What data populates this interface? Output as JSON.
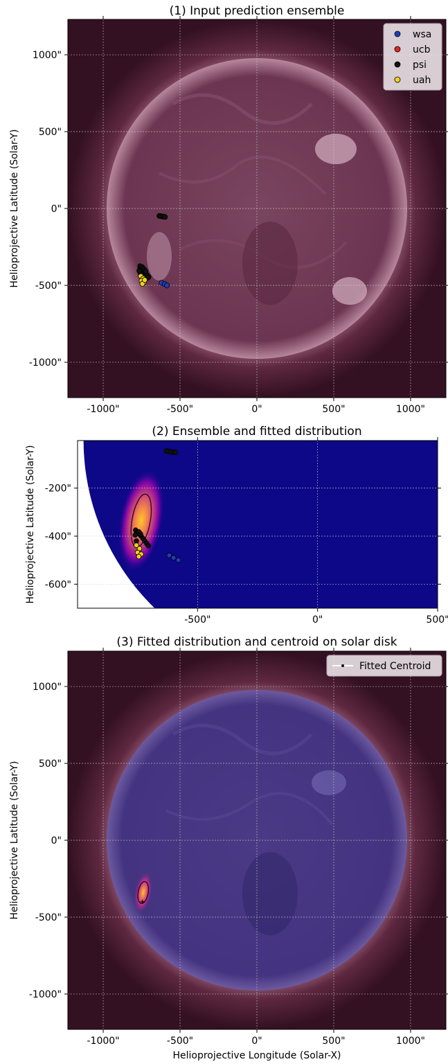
{
  "chart_data": [
    {
      "type": "scatter",
      "title": "(1) Input prediction ensemble",
      "xlabel": "",
      "ylabel": "Helioprojective Latitude (Solar-Y)",
      "xlim": [
        -1230,
        1230
      ],
      "ylim": [
        -1230,
        1230
      ],
      "xticks": [
        {
          "value": -1000,
          "label": "-1000\""
        },
        {
          "value": -500,
          "label": "-500\""
        },
        {
          "value": 0,
          "label": "0\""
        },
        {
          "value": 500,
          "label": "500\""
        },
        {
          "value": 1000,
          "label": "1000\""
        }
      ],
      "yticks": [
        {
          "value": 1000,
          "label": "1000\""
        },
        {
          "value": 500,
          "label": "500\""
        },
        {
          "value": 0,
          "label": "0\""
        },
        {
          "value": -500,
          "label": "-500\""
        },
        {
          "value": -1000,
          "label": "-1000\""
        }
      ],
      "grid": true,
      "background": "sdo-aia-171-disk",
      "legend_position": "top-right",
      "legend": [
        {
          "name": "wsa",
          "color": "#1f3fb8"
        },
        {
          "name": "ucb",
          "color": "#e8231f"
        },
        {
          "name": "psi",
          "color": "#111111"
        },
        {
          "name": "uah",
          "color": "#f2d21b"
        }
      ],
      "series": [
        {
          "name": "psi",
          "color": "#111111",
          "points": [
            [
              -635,
              -48
            ],
            [
              -625,
              -50
            ],
            [
              -615,
              -52
            ],
            [
              -605,
              -53
            ],
            [
              -598,
              -55
            ],
            [
              -760,
              -375
            ],
            [
              -752,
              -385
            ],
            [
              -745,
              -395
            ],
            [
              -738,
              -405
            ],
            [
              -730,
              -415
            ],
            [
              -722,
              -425
            ],
            [
              -714,
              -435
            ],
            [
              -705,
              -445
            ],
            [
              -760,
              -395
            ],
            [
              -758,
              -420
            ],
            [
              -748,
              -380
            ],
            [
              -740,
              -390
            ],
            [
              -732,
              -398
            ],
            [
              -725,
              -408
            ],
            [
              -720,
              -440
            ],
            [
              -710,
              -450
            ],
            [
              -765,
              -405
            ]
          ]
        },
        {
          "name": "wsa",
          "color": "#1f3fb8",
          "points": [
            [
              -620,
              -483
            ],
            [
              -600,
              -492
            ],
            [
              -585,
              -500
            ]
          ]
        },
        {
          "name": "uah",
          "color": "#f2d21b",
          "points": [
            [
              -755,
              -440
            ],
            [
              -740,
              -455
            ],
            [
              -750,
              -470
            ],
            [
              -735,
              -480
            ],
            [
              -745,
              -490
            ],
            [
              -730,
              -465
            ]
          ]
        }
      ]
    },
    {
      "type": "scatter",
      "title": "(2) Ensemble and fitted distribution",
      "xlabel": "",
      "ylabel": "Helioprojective Latitude (Solar-Y)",
      "xlim": [
        -1000,
        500
      ],
      "ylim": [
        -700,
        -2
      ],
      "xticks": [
        {
          "value": -500,
          "label": "-500\""
        },
        {
          "value": 0,
          "label": "0\""
        },
        {
          "value": 500,
          "label": "500\""
        }
      ],
      "yticks": [
        {
          "value": -200,
          "label": "-200\""
        },
        {
          "value": -400,
          "label": "-400\""
        },
        {
          "value": -600,
          "label": "-600\""
        }
      ],
      "grid": true,
      "background": "plasma-heatmap",
      "fitted_distribution": {
        "center_x": -735,
        "center_y": -335,
        "semi_axis_major": 155,
        "semi_axis_minor": 38,
        "rotation_deg": 10
      },
      "series": [
        {
          "name": "psi",
          "color": "#111111",
          "points": [
            [
              -630,
              -45
            ],
            [
              -620,
              -47
            ],
            [
              -610,
              -49
            ],
            [
              -600,
              -50
            ],
            [
              -592,
              -51
            ],
            [
              -758,
              -375
            ],
            [
              -750,
              -383
            ],
            [
              -742,
              -392
            ],
            [
              -735,
              -400
            ],
            [
              -727,
              -410
            ],
            [
              -720,
              -420
            ],
            [
              -712,
              -430
            ],
            [
              -705,
              -440
            ],
            [
              -760,
              -395
            ],
            [
              -755,
              -420
            ],
            [
              -745,
              -382
            ],
            [
              -738,
              -390
            ]
          ]
        },
        {
          "name": "wsa",
          "color": "#1f3fb8",
          "points": [
            [
              -618,
              -480
            ],
            [
              -600,
              -490
            ],
            [
              -580,
              -500
            ]
          ]
        },
        {
          "name": "uah",
          "color": "#f2d21b",
          "points": [
            [
              -755,
              -438
            ],
            [
              -742,
              -452
            ],
            [
              -750,
              -468
            ],
            [
              -735,
              -475
            ],
            [
              -745,
              -485
            ]
          ]
        }
      ]
    },
    {
      "type": "heatmap",
      "title": "(3) Fitted distribution and centroid on solar disk",
      "xlabel": "Helioprojective Longitude (Solar-X)",
      "ylabel": "Helioprojective Latitude (Solar-Y)",
      "xlim": [
        -1230,
        1230
      ],
      "ylim": [
        -1230,
        1230
      ],
      "xticks": [
        {
          "value": -1000,
          "label": "-1000\""
        },
        {
          "value": -500,
          "label": "-500\""
        },
        {
          "value": 0,
          "label": "0\""
        },
        {
          "value": 500,
          "label": "500\""
        },
        {
          "value": 1000,
          "label": "1000\""
        }
      ],
      "yticks": [
        {
          "value": 1000,
          "label": "1000\""
        },
        {
          "value": 500,
          "label": "500\""
        },
        {
          "value": 0,
          "label": "0\""
        },
        {
          "value": -500,
          "label": "-500\""
        },
        {
          "value": -1000,
          "label": "-1000\""
        }
      ],
      "grid": true,
      "background": "sdo-aia-171-disk-with-overlay",
      "legend_position": "top-right",
      "legend": [
        {
          "name": "Fitted Centroid",
          "color": "#ffffff"
        }
      ],
      "fitted_distribution": {
        "center_x": -740,
        "center_y": -340,
        "semi_axis_major": 150,
        "semi_axis_minor": 36,
        "rotation_deg": 10
      },
      "centroid": {
        "x": -745,
        "y": -400
      }
    }
  ]
}
